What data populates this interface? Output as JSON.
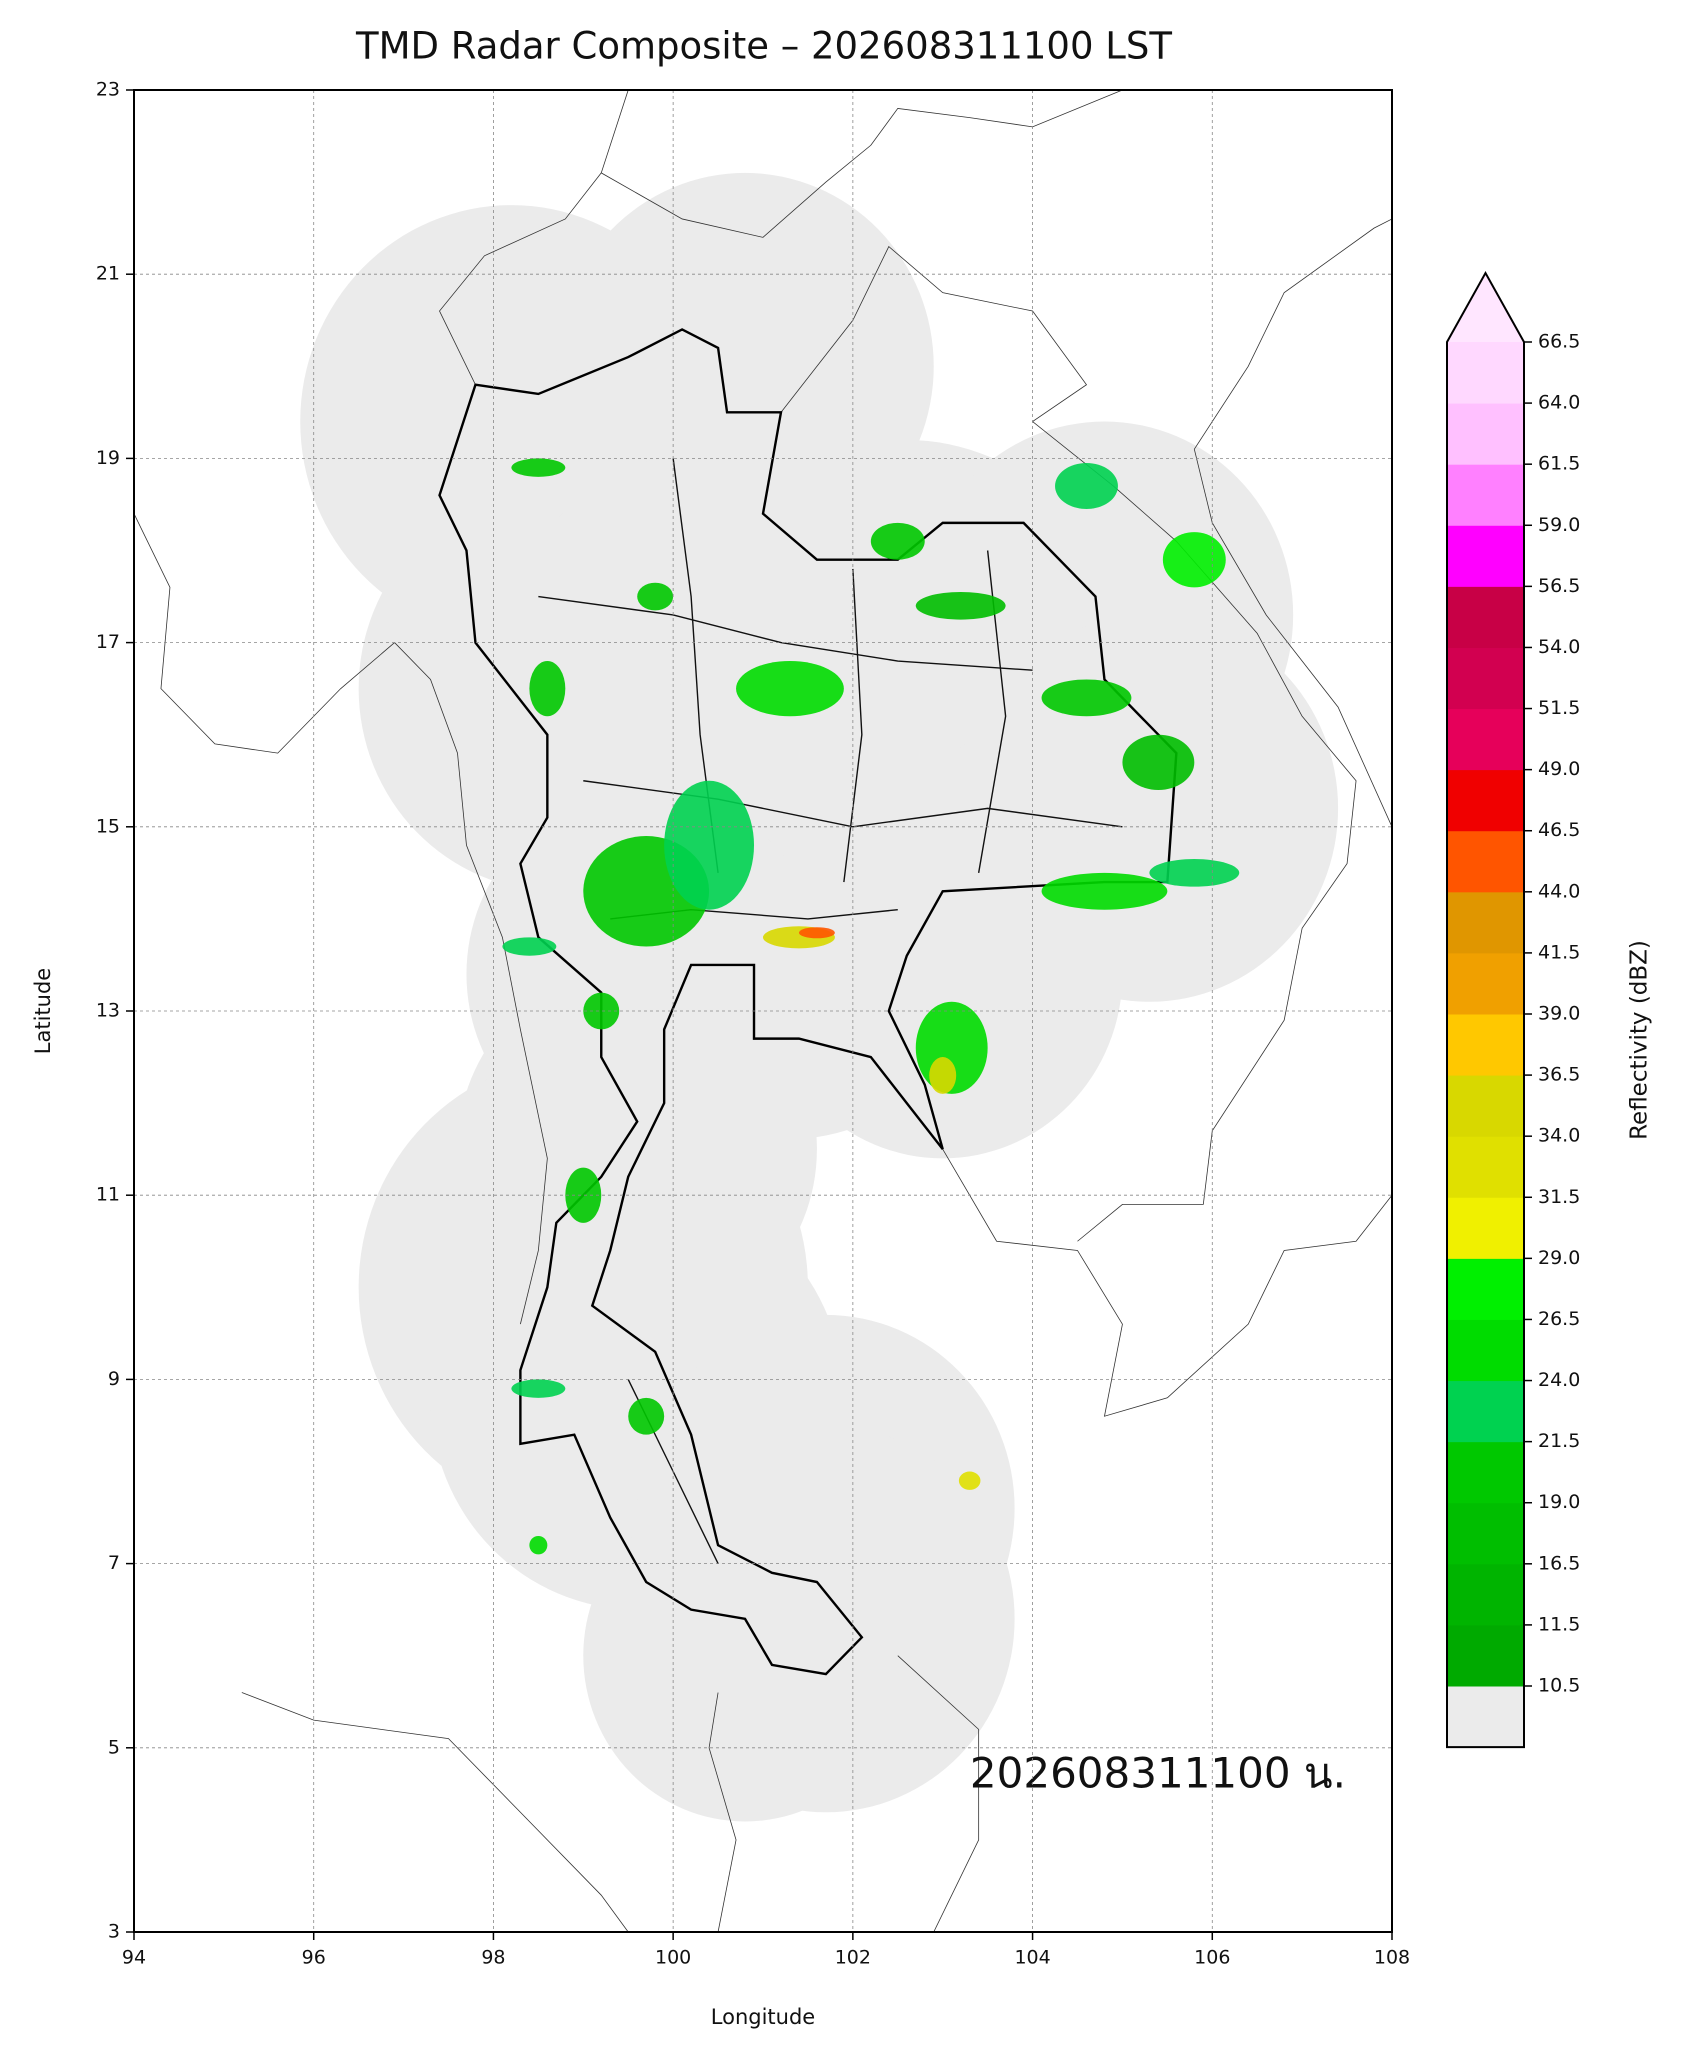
{
  "chart_data": {
    "type": "map",
    "title": "TMD Radar Composite – 202608311100 LST",
    "xlabel": "Longitude",
    "ylabel": "Latitude",
    "xlim": [
      94,
      108
    ],
    "ylim": [
      3,
      23
    ],
    "xticks": [
      94,
      96,
      98,
      100,
      102,
      104,
      106,
      108
    ],
    "yticks": [
      3,
      5,
      7,
      9,
      11,
      13,
      15,
      17,
      19,
      21,
      23
    ],
    "grid": true,
    "annotation": "202608311100 น.",
    "colorbar": {
      "label": "Reflectivity (dBZ)",
      "ticks": [
        10.5,
        11.5,
        16.5,
        {
          "value": 19,
          "label": "19.0"
        },
        21.5,
        {
          "value": 24,
          "label": "24.0"
        },
        26.5,
        {
          "value": 29,
          "label": "29.0"
        },
        31.5,
        {
          "value": 34,
          "label": "34.0"
        },
        36.5,
        {
          "value": 39,
          "label": "39.0"
        },
        41.5,
        {
          "value": 44,
          "label": "44.0"
        },
        46.5,
        {
          "value": 49,
          "label": "49.0"
        },
        51.5,
        {
          "value": 54,
          "label": "54.0"
        },
        56.5,
        {
          "value": 59,
          "label": "59.0"
        },
        61.5,
        {
          "value": 64,
          "label": "64.0"
        },
        66.5
      ],
      "under_color": "#ebebeb",
      "colors": [
        "#00aa00",
        "#00b400",
        "#00be00",
        "#00c800",
        "#00d250",
        "#00dc00",
        "#00f000",
        "#f0f000",
        "#e0e000",
        "#d8d800",
        "#ffc800",
        "#f0a000",
        "#e09600",
        "#ff5500",
        "#f00000",
        "#e6005a",
        "#d20050",
        "#c80046",
        "#ff00ff",
        "#ff80ff",
        "#ffc0ff",
        "#ffd8ff"
      ],
      "over_color": "#ffe6ff"
    }
  }
}
